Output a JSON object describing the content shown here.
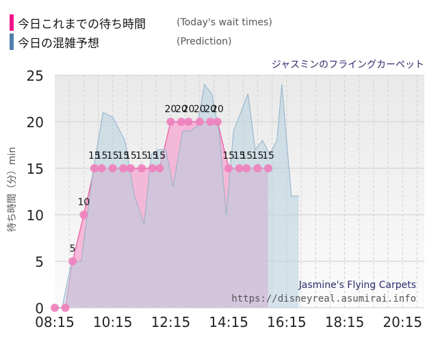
{
  "legend": {
    "actual_label": "今日これまでの待ち時間",
    "actual_sub": "(Today's wait times)",
    "actual_color": "#f0138b",
    "prediction_label": "今日の混雑予想",
    "prediction_sub": "(Prediction)",
    "prediction_color": "#4f7fae"
  },
  "attraction_title": "ジャスミンのフライングカーペット",
  "watermark": {
    "name_en": "Jasmine's Flying Carpets",
    "url": "https://disneyreal.asumirai.info"
  },
  "chart_data": {
    "type": "area",
    "ylabel": "待ち時間（分）min",
    "ylim": [
      0,
      25
    ],
    "yticks": [
      0,
      5,
      10,
      15,
      20,
      25
    ],
    "xlim": [
      "08:15",
      "21:00"
    ],
    "xticks": [
      "08:15",
      "10:15",
      "12:15",
      "14:15",
      "16:15",
      "18:15",
      "20:15"
    ],
    "grid": true,
    "series": [
      {
        "name": "今日これまでの待ち時間",
        "labels": [
          "",
          "",
          "5",
          "10",
          "15",
          "15",
          "15",
          "15",
          "15",
          "15",
          "15",
          "15",
          "20",
          "20",
          "20",
          "20",
          "20",
          "20",
          "15",
          "15",
          "15",
          "15",
          "15"
        ],
        "points": [
          [
            "08:15",
            0
          ],
          [
            "08:37",
            0
          ],
          [
            "08:52",
            5
          ],
          [
            "09:15",
            10
          ],
          [
            "09:37",
            15
          ],
          [
            "09:52",
            15
          ],
          [
            "10:15",
            15
          ],
          [
            "10:37",
            15
          ],
          [
            "10:52",
            15
          ],
          [
            "11:15",
            15
          ],
          [
            "11:37",
            15
          ],
          [
            "11:52",
            15
          ],
          [
            "12:15",
            20
          ],
          [
            "12:37",
            20
          ],
          [
            "12:52",
            20
          ],
          [
            "13:15",
            20
          ],
          [
            "13:37",
            20
          ],
          [
            "13:52",
            20
          ],
          [
            "14:15",
            15
          ],
          [
            "14:37",
            15
          ],
          [
            "14:52",
            15
          ],
          [
            "15:15",
            15
          ],
          [
            "15:37",
            15
          ]
        ]
      },
      {
        "name": "今日の混雑予想",
        "points": [
          [
            "08:15",
            0
          ],
          [
            "08:30",
            0
          ],
          [
            "08:50",
            5
          ],
          [
            "09:10",
            5
          ],
          [
            "09:35",
            15
          ],
          [
            "09:55",
            21
          ],
          [
            "10:15",
            20.5
          ],
          [
            "10:40",
            18
          ],
          [
            "11:00",
            12
          ],
          [
            "11:20",
            9
          ],
          [
            "11:35",
            16.5
          ],
          [
            "11:50",
            17
          ],
          [
            "12:05",
            17
          ],
          [
            "12:20",
            13
          ],
          [
            "12:40",
            19
          ],
          [
            "12:55",
            19
          ],
          [
            "13:10",
            19.5
          ],
          [
            "13:25",
            24
          ],
          [
            "13:40",
            23
          ],
          [
            "13:55",
            19
          ],
          [
            "14:10",
            10
          ],
          [
            "14:25",
            19
          ],
          [
            "14:40",
            21
          ],
          [
            "14:55",
            23
          ],
          [
            "15:10",
            17
          ],
          [
            "15:25",
            18
          ],
          [
            "15:40",
            16.5
          ],
          [
            "15:55",
            18
          ],
          [
            "16:05",
            24
          ],
          [
            "16:15",
            18
          ],
          [
            "16:25",
            12
          ],
          [
            "16:35",
            12
          ],
          [
            "16:40",
            12
          ]
        ]
      }
    ]
  }
}
